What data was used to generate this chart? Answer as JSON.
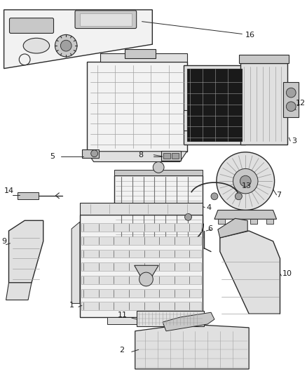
{
  "background_color": "#ffffff",
  "figsize": [
    4.38,
    5.33
  ],
  "dpi": 100,
  "line_color": "#2a2a2a",
  "text_color": "#1a1a1a",
  "label_fontsize": 8.0,
  "gray1": "#f2f2f2",
  "gray2": "#e0e0e0",
  "gray3": "#c8c8c8",
  "gray4": "#a0a0a0",
  "gray5": "#707070",
  "dark": "#303030",
  "black": "#111111"
}
